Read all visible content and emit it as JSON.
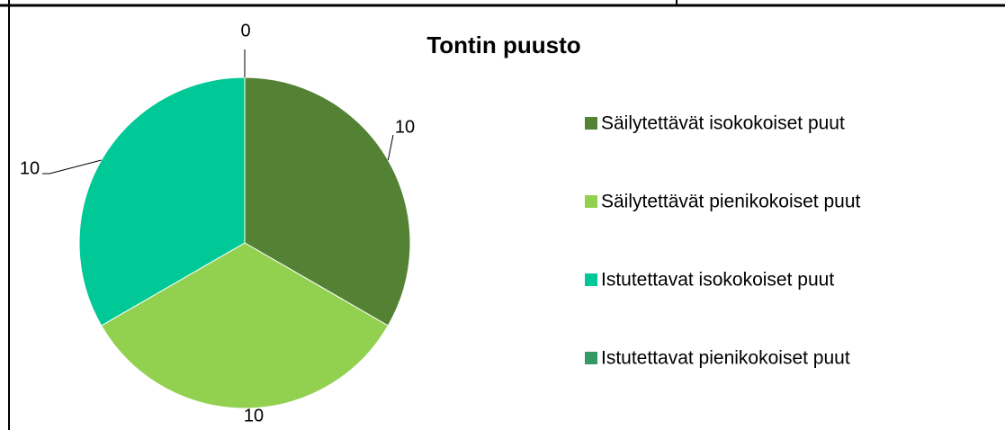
{
  "chart_data": {
    "type": "pie",
    "title": "Tontin puusto",
    "categories": [
      "Säilytettävät isokokoiset puut",
      "Säilytettävät pienikokoiset puut",
      "Istutettavat isokokoiset puut",
      "Istutettavat pienikokoiset puut"
    ],
    "values": [
      10,
      10,
      10,
      0
    ],
    "colors": [
      "#548235",
      "#92d050",
      "#00c896",
      "#339966"
    ],
    "legend": "right"
  }
}
